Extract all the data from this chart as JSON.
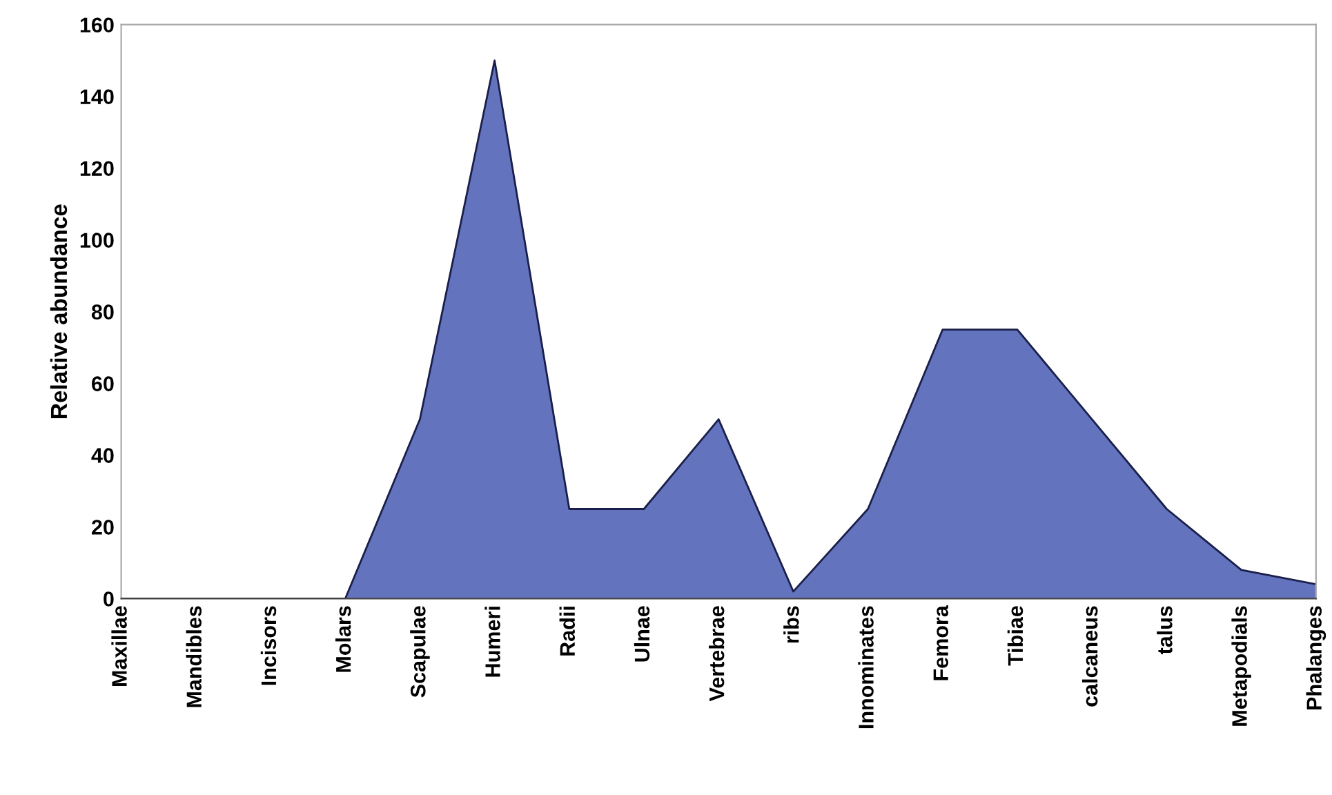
{
  "chart_data": {
    "type": "area",
    "ylabel": "Relative abundance",
    "categories": [
      "Maxillae",
      "Mandibles",
      "Incisors",
      "Molars",
      "Scapulae",
      "Humeri",
      "Radii",
      "Ulnae",
      "Vertebrae",
      "ribs",
      "Innominates",
      "Femora",
      "Tibiae",
      "calcaneus",
      "talus",
      "Metapodials",
      "Phalanges"
    ],
    "series": [
      {
        "color": "#6373bd",
        "values": [
          0,
          0,
          0,
          0,
          50,
          150,
          25,
          25,
          50,
          2,
          25,
          75,
          75,
          50,
          25,
          8,
          4
        ]
      }
    ],
    "ylim": [
      0,
      160
    ],
    "yticks": [
      0,
      20,
      40,
      60,
      80,
      100,
      120,
      140,
      160
    ],
    "grid": false,
    "legend": false
  }
}
